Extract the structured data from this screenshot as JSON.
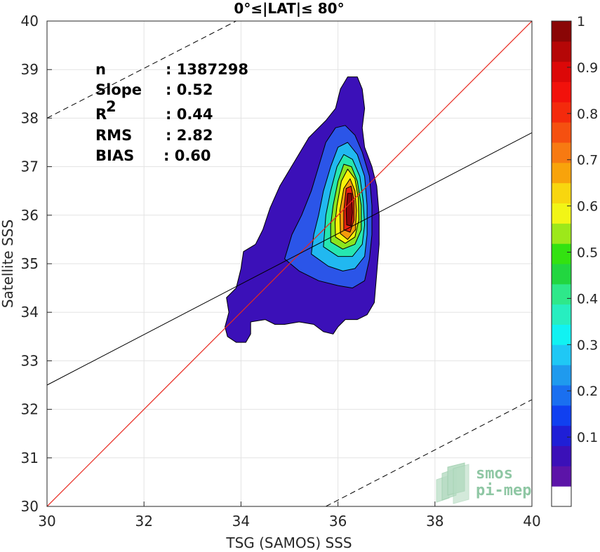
{
  "chart_data": {
    "type": "heatmap",
    "title": "0°≤|LAT|≤ 80°",
    "xlabel": "TSG (SAMOS) SSS",
    "ylabel": "Satellite SSS",
    "xlim": [
      30,
      40
    ],
    "ylim": [
      30,
      40
    ],
    "xticks": [
      "30",
      "32",
      "34",
      "36",
      "38",
      "40"
    ],
    "yticks": [
      "30",
      "31",
      "32",
      "33",
      "34",
      "35",
      "36",
      "37",
      "38",
      "39",
      "40"
    ],
    "grid": true,
    "stats": [
      {
        "label": "n",
        "value": ": 1387298"
      },
      {
        "label": "Slope",
        "value": ": 0.52"
      },
      {
        "label": "R",
        "sup": "2",
        "value": ": 0.44"
      },
      {
        "label": "RMS",
        "value": ": 2.82"
      },
      {
        "label": "BIAS",
        "value": ": 0.60"
      }
    ],
    "identity_line": {
      "x": [
        30,
        40
      ],
      "y": [
        30,
        40
      ],
      "color": "#e8281e"
    },
    "fit_line": {
      "x": [
        30,
        40
      ],
      "y": [
        32.5,
        37.7
      ],
      "color": "#000000"
    },
    "bound_lines": [
      {
        "x": [
          30,
          33.9
        ],
        "y": [
          38.0,
          40.0
        ]
      },
      {
        "x": [
          35.75,
          40
        ],
        "y": [
          30.0,
          32.2
        ]
      }
    ],
    "density_contours": [
      {
        "level": 0.05,
        "color": "#3b10b8",
        "points": [
          [
            33.67,
            33.7
          ],
          [
            33.72,
            33.5
          ],
          [
            33.9,
            33.38
          ],
          [
            34.1,
            33.38
          ],
          [
            34.2,
            33.55
          ],
          [
            34.2,
            33.8
          ],
          [
            34.5,
            33.85
          ],
          [
            34.7,
            33.75
          ],
          [
            34.9,
            33.75
          ],
          [
            35.2,
            33.8
          ],
          [
            35.5,
            33.75
          ],
          [
            35.7,
            33.6
          ],
          [
            35.9,
            33.55
          ],
          [
            36.0,
            33.7
          ],
          [
            36.15,
            33.85
          ],
          [
            36.4,
            33.85
          ],
          [
            36.6,
            33.95
          ],
          [
            36.75,
            34.2
          ],
          [
            36.8,
            34.8
          ],
          [
            36.85,
            35.4
          ],
          [
            36.85,
            36.0
          ],
          [
            36.8,
            36.6
          ],
          [
            36.7,
            37.0
          ],
          [
            36.55,
            37.4
          ],
          [
            36.5,
            37.8
          ],
          [
            36.55,
            38.2
          ],
          [
            36.5,
            38.6
          ],
          [
            36.4,
            38.85
          ],
          [
            36.2,
            38.85
          ],
          [
            36.05,
            38.6
          ],
          [
            35.95,
            38.2
          ],
          [
            35.75,
            37.95
          ],
          [
            35.4,
            37.6
          ],
          [
            35.1,
            37.1
          ],
          [
            34.8,
            36.6
          ],
          [
            34.6,
            36.15
          ],
          [
            34.45,
            35.7
          ],
          [
            34.3,
            35.4
          ],
          [
            34.05,
            35.25
          ],
          [
            34.0,
            34.9
          ],
          [
            33.9,
            34.5
          ],
          [
            33.7,
            34.3
          ],
          [
            33.75,
            34.0
          ]
        ]
      },
      {
        "level": 0.15,
        "color": "#2b55e8",
        "points": [
          [
            34.9,
            35.1
          ],
          [
            35.2,
            34.85
          ],
          [
            35.6,
            34.65
          ],
          [
            36.0,
            34.55
          ],
          [
            36.3,
            34.5
          ],
          [
            36.55,
            34.65
          ],
          [
            36.65,
            35.1
          ],
          [
            36.7,
            35.6
          ],
          [
            36.7,
            36.2
          ],
          [
            36.65,
            36.8
          ],
          [
            36.5,
            37.3
          ],
          [
            36.35,
            37.65
          ],
          [
            36.15,
            37.85
          ],
          [
            35.95,
            37.8
          ],
          [
            35.75,
            37.5
          ],
          [
            35.6,
            37.0
          ],
          [
            35.45,
            36.5
          ],
          [
            35.25,
            36.0
          ],
          [
            35.05,
            35.6
          ]
        ]
      },
      {
        "level": 0.3,
        "color": "#21b8f0",
        "points": [
          [
            35.45,
            35.2
          ],
          [
            35.8,
            34.95
          ],
          [
            36.1,
            34.85
          ],
          [
            36.35,
            34.9
          ],
          [
            36.55,
            35.15
          ],
          [
            36.6,
            35.6
          ],
          [
            36.6,
            36.2
          ],
          [
            36.55,
            36.8
          ],
          [
            36.4,
            37.25
          ],
          [
            36.2,
            37.5
          ],
          [
            36.0,
            37.4
          ],
          [
            35.85,
            37.0
          ],
          [
            35.7,
            36.5
          ],
          [
            35.6,
            36.0
          ],
          [
            35.5,
            35.6
          ]
        ]
      },
      {
        "level": 0.45,
        "color": "#26e6b0",
        "points": [
          [
            35.7,
            35.35
          ],
          [
            36.0,
            35.15
          ],
          [
            36.3,
            35.15
          ],
          [
            36.5,
            35.4
          ],
          [
            36.55,
            35.8
          ],
          [
            36.52,
            36.3
          ],
          [
            36.45,
            36.8
          ],
          [
            36.3,
            37.15
          ],
          [
            36.12,
            37.25
          ],
          [
            35.98,
            37.0
          ],
          [
            35.85,
            36.5
          ],
          [
            35.75,
            36.0
          ]
        ]
      },
      {
        "level": 0.55,
        "color": "#8be51f",
        "points": [
          [
            35.85,
            35.45
          ],
          [
            36.1,
            35.3
          ],
          [
            36.35,
            35.4
          ],
          [
            36.48,
            35.7
          ],
          [
            36.48,
            36.2
          ],
          [
            36.4,
            36.7
          ],
          [
            36.28,
            37.0
          ],
          [
            36.12,
            37.05
          ],
          [
            36.0,
            36.7
          ],
          [
            35.9,
            36.2
          ],
          [
            35.85,
            35.8
          ]
        ]
      },
      {
        "level": 0.65,
        "color": "#f8f20a",
        "points": [
          [
            35.95,
            35.55
          ],
          [
            36.15,
            35.42
          ],
          [
            36.35,
            35.55
          ],
          [
            36.43,
            35.9
          ],
          [
            36.42,
            36.35
          ],
          [
            36.35,
            36.75
          ],
          [
            36.2,
            36.95
          ],
          [
            36.07,
            36.7
          ],
          [
            35.98,
            36.2
          ],
          [
            35.94,
            35.85
          ]
        ]
      },
      {
        "level": 0.75,
        "color": "#f59a0c",
        "points": [
          [
            36.05,
            35.62
          ],
          [
            36.2,
            35.5
          ],
          [
            36.36,
            35.7
          ],
          [
            36.38,
            36.1
          ],
          [
            36.35,
            36.5
          ],
          [
            36.25,
            36.75
          ],
          [
            36.12,
            36.55
          ],
          [
            36.04,
            36.1
          ]
        ]
      },
      {
        "level": 0.85,
        "color": "#e8230f",
        "points": [
          [
            36.12,
            35.7
          ],
          [
            36.25,
            35.65
          ],
          [
            36.33,
            35.9
          ],
          [
            36.33,
            36.3
          ],
          [
            36.27,
            36.6
          ],
          [
            36.17,
            36.55
          ],
          [
            36.12,
            36.1
          ]
        ]
      },
      {
        "level": 0.95,
        "color": "#8b0709",
        "points": [
          [
            36.18,
            35.8
          ],
          [
            36.27,
            35.78
          ],
          [
            36.3,
            36.05
          ],
          [
            36.28,
            36.45
          ],
          [
            36.2,
            36.45
          ],
          [
            36.17,
            36.1
          ]
        ]
      }
    ],
    "colorbar": {
      "ticks": [
        "0.1",
        "0.2",
        "0.3",
        "0.4",
        "0.5",
        "0.6",
        "0.7",
        "0.8",
        "0.9",
        "1"
      ],
      "colors": [
        "#ffffff",
        "#5c14a8",
        "#3b10b8",
        "#1f1fd6",
        "#1040f0",
        "#1a6ff0",
        "#1f9aee",
        "#1fc8f5",
        "#11f2f2",
        "#27eec0",
        "#2ee88a",
        "#22d640",
        "#33e211",
        "#9de81a",
        "#f2f516",
        "#f8d60f",
        "#f8a30b",
        "#f77a12",
        "#f55010",
        "#f42a0c",
        "#f2110b",
        "#dc0808",
        "#b50707",
        "#8a0606"
      ]
    }
  },
  "logo": {
    "line1": "smos",
    "line2": "pi-mep"
  }
}
